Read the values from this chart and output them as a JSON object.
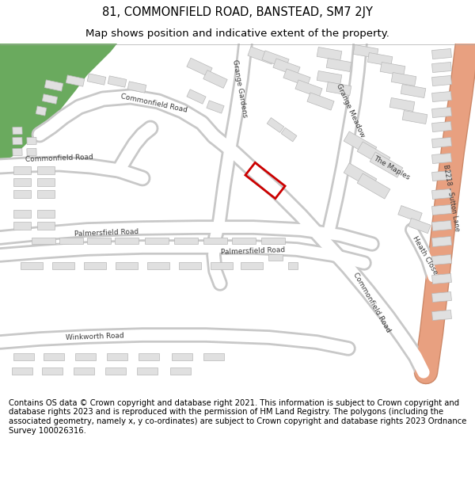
{
  "title": "81, COMMONFIELD ROAD, BANSTEAD, SM7 2JY",
  "subtitle": "Map shows position and indicative extent of the property.",
  "footer_lines": [
    "Contains OS data © Crown copyright and database right 2021. This information is subject to Crown copyright and database rights 2023 and is reproduced with the permission of",
    "HM Land Registry. The polygons (including the associated geometry, namely x, y co-ordinates) are subject to Crown copyright and database rights 2023 Ordnance Survey",
    "100026316."
  ],
  "map_bg": "#f0eeeb",
  "road_color": "#ffffff",
  "road_outline_color": "#c8c8c8",
  "building_color": "#e0e0e0",
  "building_outline_color": "#b8b8b8",
  "green_color": "#6aaa5e",
  "b2218_color": "#e8a080",
  "b2218_outline": "#cc8868",
  "plot_edge": "#cc0000",
  "title_fontsize": 10.5,
  "subtitle_fontsize": 9.5,
  "footer_fontsize": 7.2,
  "label_fontsize": 6.5,
  "label_color": "#3a3a3a"
}
